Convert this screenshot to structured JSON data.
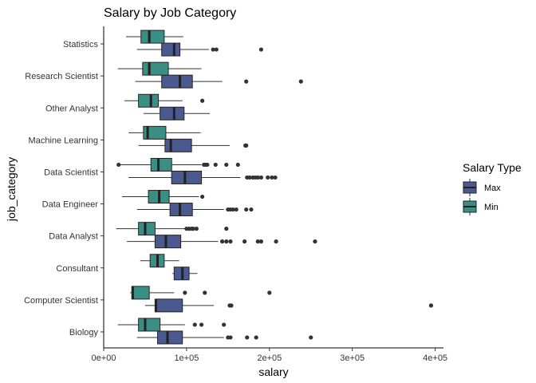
{
  "chart_data": {
    "type": "boxplot",
    "orientation": "horizontal",
    "title": "Salary by Job Category",
    "xlabel": "salary",
    "ylabel": "job_category",
    "xlim": [
      0,
      410000
    ],
    "x_ticks": [
      0,
      100000,
      200000,
      300000,
      400000
    ],
    "x_tick_labels": [
      "0e+00",
      "1e+05",
      "2e+05",
      "3e+05",
      "4e+05"
    ],
    "grid": false,
    "legend": {
      "title": "Salary Type",
      "position": "right",
      "entries": [
        {
          "name": "Max",
          "color": "#4a5a91"
        },
        {
          "name": "Min",
          "color": "#3a8f84"
        }
      ]
    },
    "categories": [
      "Statistics",
      "Research Scientist",
      "Other Analyst",
      "Machine Learning",
      "Data Scientist",
      "Data Engineer",
      "Data Analyst",
      "Consultant",
      "Computer Scientist",
      "Biology"
    ],
    "series": [
      {
        "name": "Max",
        "color": "#4a5a91",
        "boxes": [
          {
            "category": "Statistics",
            "whisker_low": 40000,
            "q1": 70000,
            "median": 85000,
            "q3": 92000,
            "whisker_high": 127000,
            "outliers": [
              132000,
              136000,
              190000
            ]
          },
          {
            "category": "Research Scientist",
            "whisker_low": 38000,
            "q1": 70000,
            "median": 92000,
            "q3": 107000,
            "whisker_high": 143000,
            "outliers": [
              172000,
              238000
            ]
          },
          {
            "category": "Other Analyst",
            "whisker_low": 48000,
            "q1": 68000,
            "median": 85000,
            "q3": 97000,
            "whisker_high": 128000,
            "outliers": []
          },
          {
            "category": "Machine Learning",
            "whisker_low": 42000,
            "q1": 74000,
            "median": 81000,
            "q3": 106000,
            "whisker_high": 152000,
            "outliers": [
              171000,
              172000
            ]
          },
          {
            "category": "Data Scientist",
            "whisker_low": 30000,
            "q1": 82000,
            "median": 98000,
            "q3": 118000,
            "whisker_high": 165000,
            "outliers": [
              173000,
              176000,
              180000,
              183000,
              186000,
              190000,
              198000,
              203000,
              207000
            ]
          },
          {
            "category": "Data Engineer",
            "whisker_low": 40000,
            "q1": 80000,
            "median": 92000,
            "q3": 107000,
            "whisker_high": 145000,
            "outliers": [
              150000,
              153000,
              156000,
              160000,
              172000,
              178000
            ]
          },
          {
            "category": "Data Analyst",
            "whisker_low": 28000,
            "q1": 62000,
            "median": 75000,
            "q3": 93000,
            "whisker_high": 138000,
            "outliers": [
              143000,
              148000,
              153000,
              170000,
              186000,
              190000,
              208000,
              255000
            ]
          },
          {
            "category": "Consultant",
            "whisker_low": 83000,
            "q1": 85000,
            "median": 95000,
            "q3": 103000,
            "whisker_high": 113000,
            "outliers": []
          },
          {
            "category": "Computer Scientist",
            "whisker_low": 50000,
            "q1": 62000,
            "median": 63000,
            "q3": 95000,
            "whisker_high": 133000,
            "outliers": [
              152000,
              154000,
              395000
            ]
          },
          {
            "category": "Biology",
            "whisker_low": 40000,
            "q1": 65000,
            "median": 77000,
            "q3": 95000,
            "whisker_high": 145000,
            "outliers": [
              150000,
              153000,
              173000,
              184000,
              250000
            ]
          }
        ]
      },
      {
        "name": "Min",
        "color": "#3a8f84",
        "boxes": [
          {
            "category": "Statistics",
            "whisker_low": 27000,
            "q1": 45000,
            "median": 55000,
            "q3": 73000,
            "whisker_high": 96000,
            "outliers": []
          },
          {
            "category": "Research Scientist",
            "whisker_low": 17000,
            "q1": 47000,
            "median": 55000,
            "q3": 78000,
            "whisker_high": 118000,
            "outliers": []
          },
          {
            "category": "Other Analyst",
            "whisker_low": 25000,
            "q1": 42000,
            "median": 57000,
            "q3": 66000,
            "whisker_high": 95000,
            "outliers": [
              119000
            ]
          },
          {
            "category": "Machine Learning",
            "whisker_low": 30000,
            "q1": 48000,
            "median": 53000,
            "q3": 75000,
            "whisker_high": 117000,
            "outliers": []
          },
          {
            "category": "Data Scientist",
            "whisker_low": 20000,
            "q1": 57000,
            "median": 66000,
            "q3": 82000,
            "whisker_high": 118000,
            "outliers": [
              18000,
              121000,
              123000,
              125000,
              135000,
              148000,
              162000
            ]
          },
          {
            "category": "Data Engineer",
            "whisker_low": 22000,
            "q1": 54000,
            "median": 67000,
            "q3": 79000,
            "whisker_high": 115000,
            "outliers": [
              119000
            ]
          },
          {
            "category": "Data Analyst",
            "whisker_low": 15000,
            "q1": 42000,
            "median": 50000,
            "q3": 62000,
            "whisker_high": 98000,
            "outliers": [
              100000,
              103000,
              106000,
              108000,
              112000,
              148000
            ]
          },
          {
            "category": "Consultant",
            "whisker_low": 44000,
            "q1": 56000,
            "median": 65000,
            "q3": 73000,
            "whisker_high": 91000,
            "outliers": []
          },
          {
            "category": "Computer Scientist",
            "whisker_low": 32000,
            "q1": 34000,
            "median": 35000,
            "q3": 55000,
            "whisker_high": 85000,
            "outliers": [
              98000,
              122000,
              200000
            ]
          },
          {
            "category": "Biology",
            "whisker_low": 17000,
            "q1": 42000,
            "median": 50000,
            "q3": 68000,
            "whisker_high": 98000,
            "outliers": [
              110000,
              118000,
              145000
            ]
          }
        ]
      }
    ]
  }
}
